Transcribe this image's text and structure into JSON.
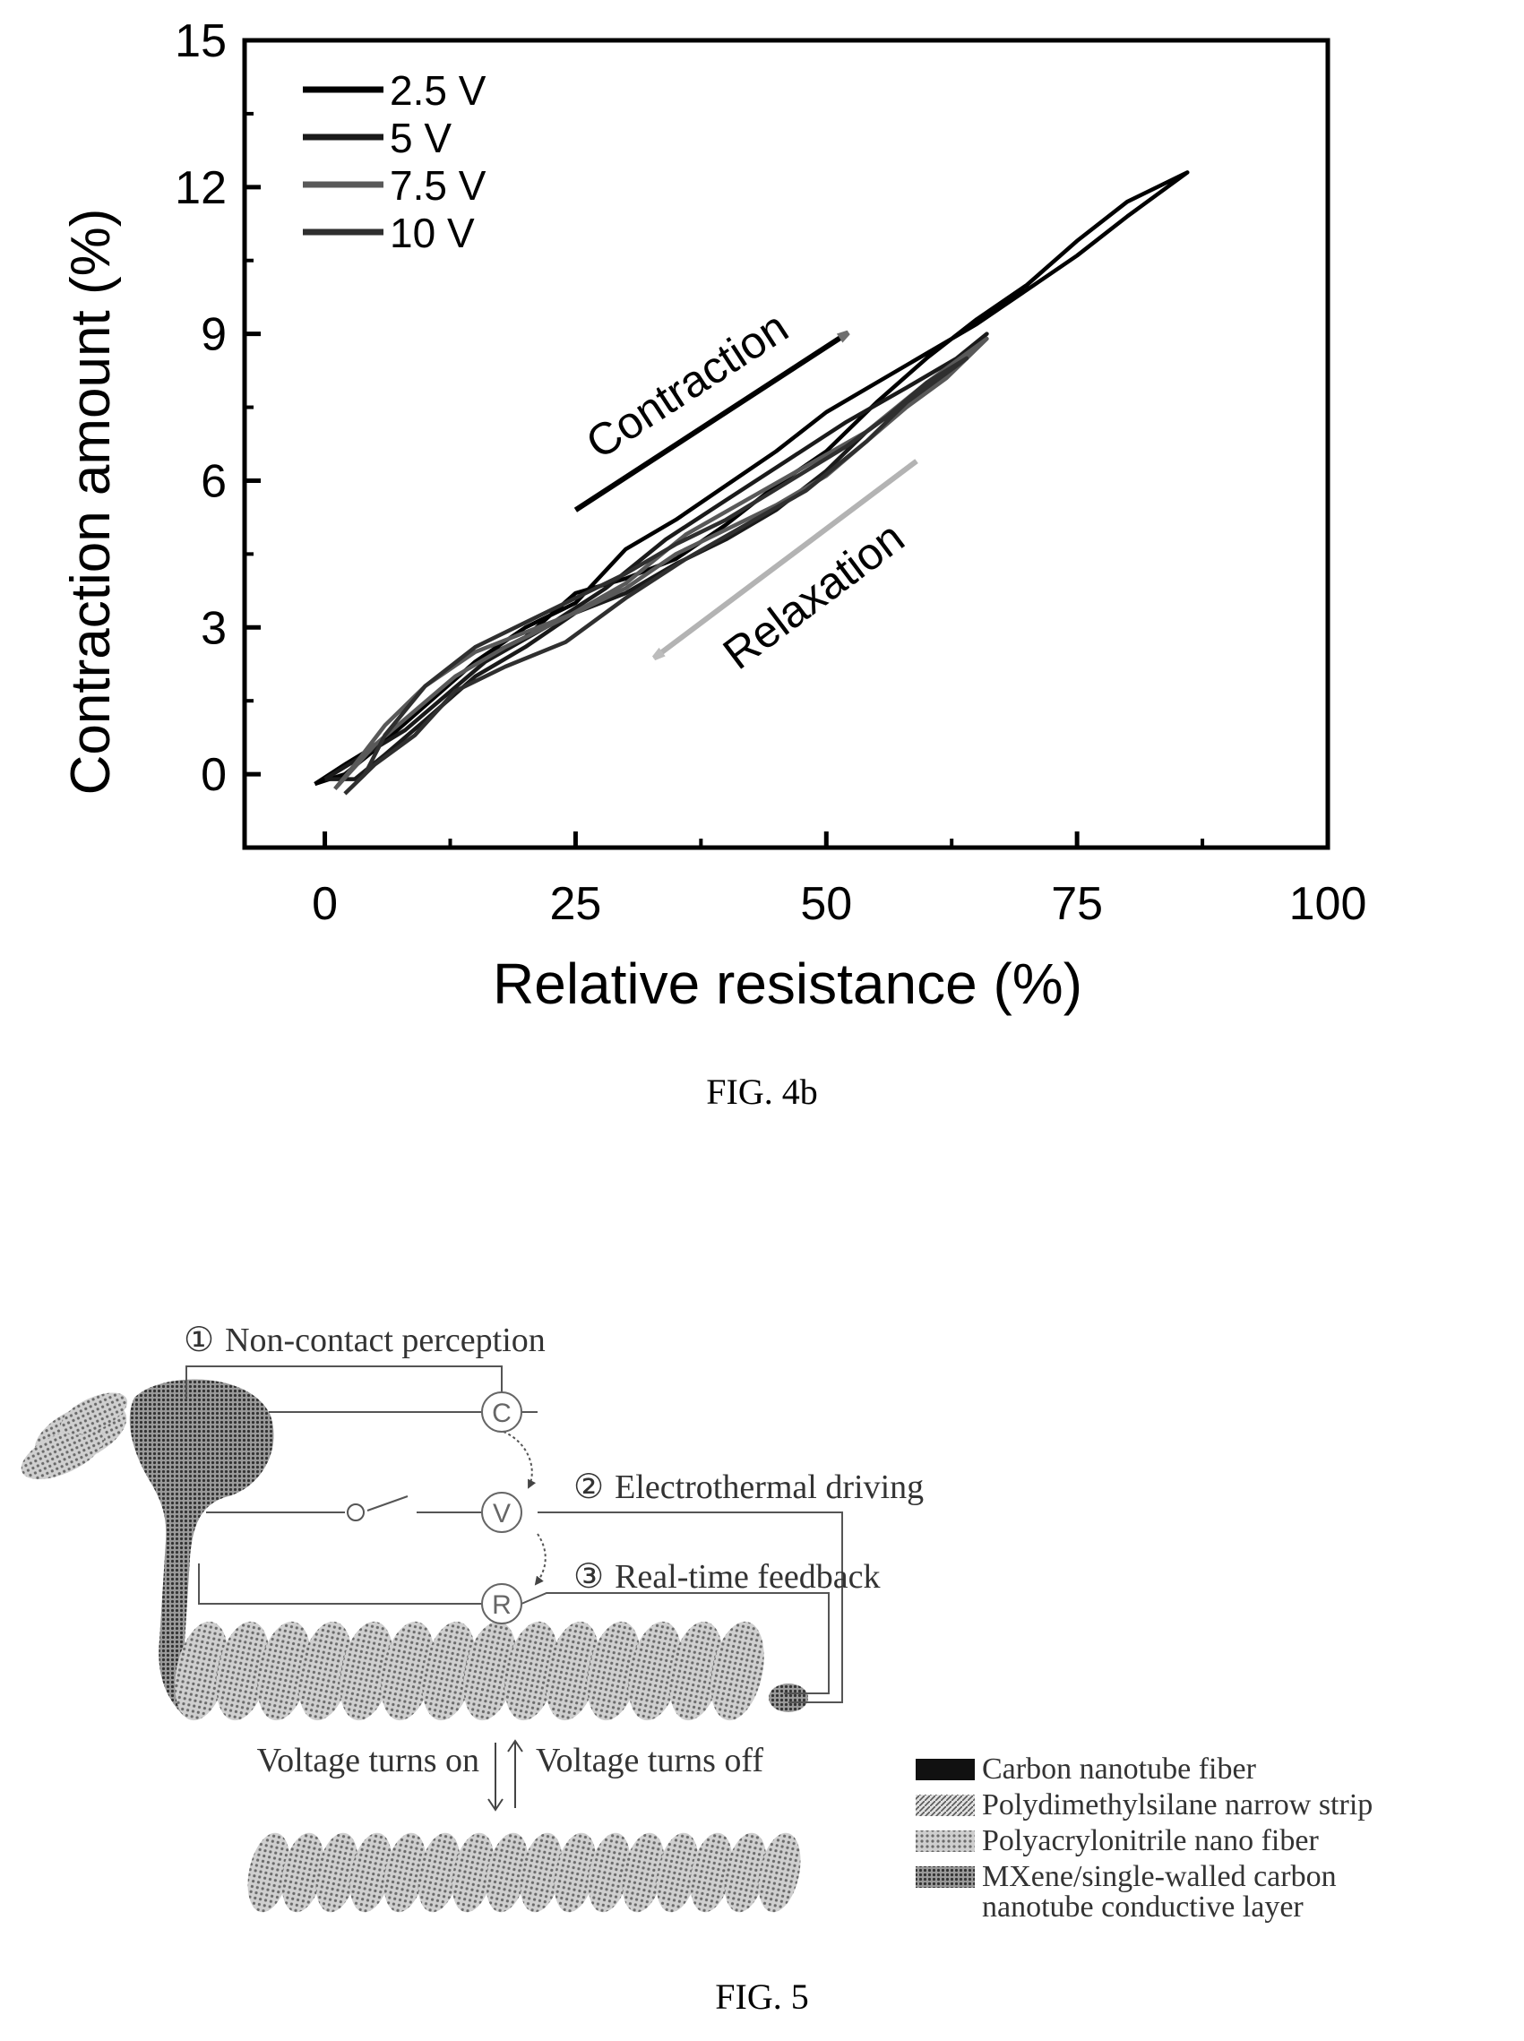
{
  "fig4b": {
    "caption": "FIG. 4b",
    "chart_data": {
      "type": "line",
      "xlabel": "Relative resistance (%)",
      "ylabel": "Contraction amount (%)",
      "xlim": [
        -8,
        100
      ],
      "ylim": [
        -1.5,
        15
      ],
      "xticks": [
        0,
        25,
        50,
        75,
        100
      ],
      "yticks": [
        0,
        3,
        6,
        9,
        12,
        15
      ],
      "legend_position": "top-left",
      "series": [
        {
          "name": "2.5 V",
          "color": "#000000",
          "points": [
            [
              -1,
              -0.2
            ],
            [
              2,
              0.2
            ],
            [
              6,
              0.7
            ],
            [
              10,
              1.4
            ],
            [
              15,
              2.3
            ],
            [
              20,
              3.0
            ],
            [
              25,
              3.5
            ],
            [
              30,
              4.6
            ],
            [
              35,
              5.2
            ],
            [
              40,
              5.9
            ],
            [
              45,
              6.6
            ],
            [
              50,
              7.4
            ],
            [
              55,
              8.0
            ],
            [
              60,
              8.6
            ],
            [
              65,
              9.2
            ],
            [
              70,
              9.9
            ],
            [
              75,
              10.6
            ],
            [
              80,
              11.4
            ],
            [
              86,
              12.3
            ],
            [
              80,
              11.7
            ],
            [
              75,
              10.9
            ],
            [
              70,
              10.0
            ],
            [
              65,
              9.3
            ],
            [
              60,
              8.5
            ],
            [
              55,
              7.6
            ],
            [
              50,
              6.6
            ],
            [
              45,
              5.9
            ],
            [
              40,
              5.1
            ],
            [
              35,
              4.4
            ],
            [
              30,
              4.0
            ],
            [
              25,
              3.7
            ],
            [
              20,
              2.8
            ],
            [
              15,
              2.3
            ],
            [
              10,
              1.4
            ],
            [
              5,
              0.5
            ],
            [
              2,
              0.0
            ],
            [
              -1,
              -0.2
            ]
          ]
        },
        {
          "name": "5 V",
          "color": "#1a1a1a",
          "points": [
            [
              0,
              -0.1
            ],
            [
              4,
              0.4
            ],
            [
              8,
              0.9
            ],
            [
              12,
              1.6
            ],
            [
              16,
              2.3
            ],
            [
              22,
              3.0
            ],
            [
              28,
              3.8
            ],
            [
              34,
              4.8
            ],
            [
              40,
              5.6
            ],
            [
              46,
              6.4
            ],
            [
              52,
              7.2
            ],
            [
              58,
              7.9
            ],
            [
              63,
              8.5
            ],
            [
              66,
              9.0
            ],
            [
              62,
              8.2
            ],
            [
              58,
              7.6
            ],
            [
              54,
              7.0
            ],
            [
              50,
              6.2
            ],
            [
              45,
              5.4
            ],
            [
              40,
              4.8
            ],
            [
              35,
              4.3
            ],
            [
              30,
              3.7
            ],
            [
              25,
              3.3
            ],
            [
              20,
              2.6
            ],
            [
              15,
              2.0
            ],
            [
              10,
              1.1
            ],
            [
              6,
              0.4
            ],
            [
              3,
              -0.1
            ],
            [
              0,
              -0.1
            ]
          ]
        },
        {
          "name": "7.5 V",
          "color": "#595959",
          "points": [
            [
              1,
              -0.3
            ],
            [
              5,
              0.6
            ],
            [
              9,
              1.3
            ],
            [
              13,
              2.0
            ],
            [
              18,
              2.6
            ],
            [
              24,
              3.2
            ],
            [
              30,
              3.9
            ],
            [
              36,
              4.9
            ],
            [
              42,
              5.6
            ],
            [
              48,
              6.3
            ],
            [
              54,
              7.0
            ],
            [
              60,
              8.0
            ],
            [
              66,
              8.9
            ],
            [
              62,
              8.1
            ],
            [
              58,
              7.5
            ],
            [
              54,
              6.8
            ],
            [
              50,
              6.1
            ],
            [
              45,
              5.5
            ],
            [
              40,
              5.0
            ],
            [
              35,
              4.5
            ],
            [
              30,
              3.8
            ],
            [
              25,
              3.3
            ],
            [
              20,
              2.9
            ],
            [
              15,
              2.5
            ],
            [
              10,
              1.8
            ],
            [
              6,
              1.0
            ],
            [
              3,
              0.2
            ],
            [
              1,
              -0.3
            ]
          ]
        },
        {
          "name": "10 V",
          "color": "#2f2f2f",
          "points": [
            [
              2,
              -0.4
            ],
            [
              5,
              0.2
            ],
            [
              9,
              0.8
            ],
            [
              13,
              1.7
            ],
            [
              18,
              2.2
            ],
            [
              24,
              2.7
            ],
            [
              30,
              3.6
            ],
            [
              36,
              4.4
            ],
            [
              42,
              5.1
            ],
            [
              48,
              5.8
            ],
            [
              54,
              6.8
            ],
            [
              58,
              7.6
            ],
            [
              62,
              8.2
            ],
            [
              64,
              8.5
            ],
            [
              60,
              8.0
            ],
            [
              56,
              7.3
            ],
            [
              52,
              6.7
            ],
            [
              48,
              6.2
            ],
            [
              44,
              5.7
            ],
            [
              40,
              5.2
            ],
            [
              35,
              4.7
            ],
            [
              30,
              4.1
            ],
            [
              25,
              3.6
            ],
            [
              20,
              3.1
            ],
            [
              15,
              2.6
            ],
            [
              10,
              1.8
            ],
            [
              6,
              0.8
            ],
            [
              4,
              0.0
            ],
            [
              2,
              -0.4
            ]
          ]
        }
      ],
      "annotations": [
        {
          "text": "Contraction",
          "from": [
            25,
            5.4
          ],
          "to": [
            52,
            9.0
          ],
          "color": "#000000"
        },
        {
          "text": "Relaxation",
          "from": [
            59,
            6.4
          ],
          "to": [
            33,
            2.4
          ],
          "color": "#b3b3b3"
        }
      ]
    }
  },
  "fig5": {
    "caption": "FIG. 5",
    "steps": [
      {
        "marker": "①",
        "text": "Non-contact perception"
      },
      {
        "marker": "②",
        "text": "Electrothermal driving"
      },
      {
        "marker": "③",
        "text": "Real-time feedback"
      }
    ],
    "meters": {
      "c": "C",
      "v": "V",
      "r": "R"
    },
    "voltage_on": "Voltage turns on",
    "voltage_off": "Voltage turns off",
    "legend": [
      {
        "label": "Carbon nanotube fiber",
        "color": "#111111"
      },
      {
        "label": "Polydimethylsilane narrow strip",
        "color": "#7a7a7a"
      },
      {
        "label": "Polyacrylonitrile nano fiber",
        "color": "#a8a8a8"
      },
      {
        "label": "MXene/single-walled carbon",
        "label2": "nanotube conductive layer",
        "color": "#8e8e8e"
      }
    ]
  }
}
